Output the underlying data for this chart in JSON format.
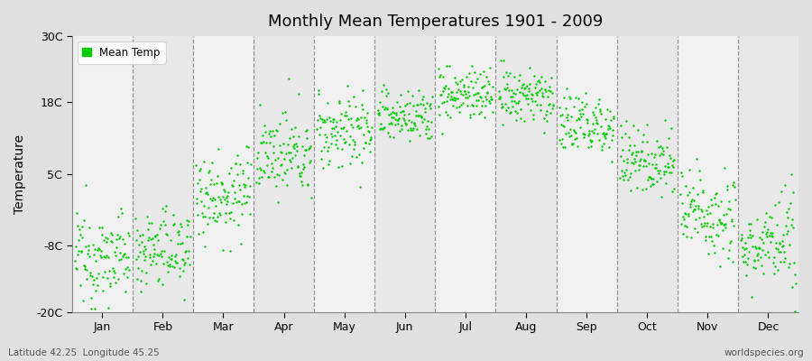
{
  "title": "Monthly Mean Temperatures 1901 - 2009",
  "ylabel": "Temperature",
  "xlabel": "",
  "ylim": [
    -20,
    30
  ],
  "yticks": [
    -20,
    -8,
    5,
    18,
    30
  ],
  "ytick_labels": [
    "-20C",
    "-8C",
    "5C",
    "18C",
    "30C"
  ],
  "months": [
    "Jan",
    "Feb",
    "Mar",
    "Apr",
    "May",
    "Jun",
    "Jul",
    "Aug",
    "Sep",
    "Oct",
    "Nov",
    "Dec"
  ],
  "dot_color": "#00cc00",
  "background_color": "#e0e0e0",
  "plot_bg_colors": [
    "#f0f0f0",
    "#e8e8e8"
  ],
  "legend_label": "Mean Temp",
  "footer_left": "Latitude 42.25  Longitude 45.25",
  "footer_right": "worldspecies.org",
  "mean_temps": [
    -10.0,
    -8.5,
    1.5,
    8.5,
    13.0,
    15.5,
    19.5,
    19.0,
    14.0,
    7.5,
    -2.0,
    -8.0
  ],
  "spread": [
    4.0,
    3.5,
    4.0,
    3.5,
    3.5,
    2.5,
    2.5,
    2.5,
    3.0,
    3.0,
    4.0,
    4.0
  ],
  "n_points": 109,
  "year_start": 1901,
  "year_end": 2009
}
